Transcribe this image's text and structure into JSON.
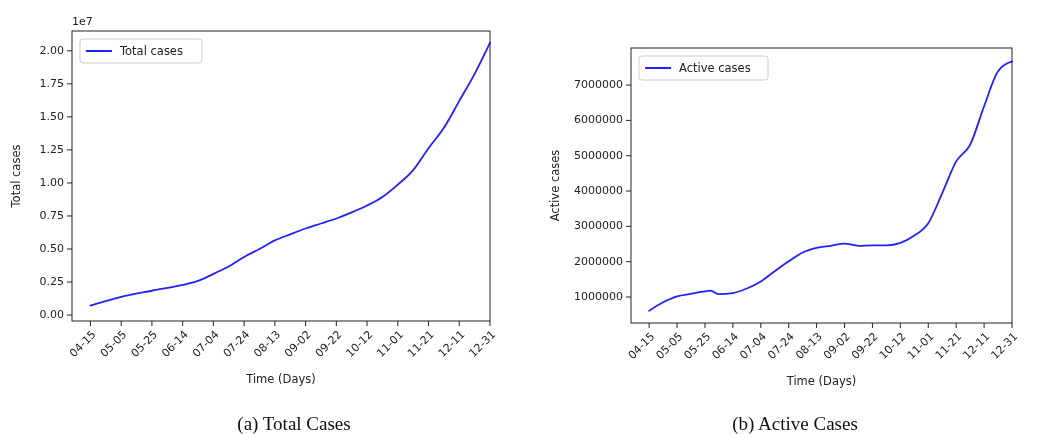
{
  "chart_data": [
    {
      "type": "line",
      "title": "(a)  Total Cases",
      "xlabel": "Time (Days)",
      "ylabel": "Total cases",
      "annotations": [
        "1e7"
      ],
      "x": [
        "--04-15",
        "--05-05",
        "--05-25",
        "--06-14",
        "--06-24",
        "--07-04",
        "--07-14",
        "--07-24",
        "--08-03",
        "--08-13",
        "--08-23",
        "--09-02",
        "--09-12",
        "--09-22",
        "--10-02",
        "--10-12",
        "--10-22",
        "--11-01",
        "--11-11",
        "--11-21",
        "--12-01",
        "--12-11",
        "--12-21",
        "--12-31"
      ],
      "series": [
        {
          "name": "Total cases",
          "color": "#2222ff",
          "values": [
            0.072,
            0.138,
            0.184,
            0.228,
            0.258,
            0.312,
            0.368,
            0.44,
            0.5,
            0.565,
            0.611,
            0.655,
            0.693,
            0.731,
            0.777,
            0.829,
            0.893,
            0.987,
            1.097,
            1.263,
            1.417,
            1.621,
            1.826,
            2.061
          ]
        }
      ],
      "xlim": [
        "--04-03",
        "--12-31"
      ],
      "xticks": [
        {
          "value": "--04-15",
          "label": "04-15"
        },
        {
          "value": "--05-05",
          "label": "05-05"
        },
        {
          "value": "--05-25",
          "label": "05-25"
        },
        {
          "value": "--06-14",
          "label": "06-14"
        },
        {
          "value": "--07-04",
          "label": "07-04"
        },
        {
          "value": "--07-24",
          "label": "07-24"
        },
        {
          "value": "--08-13",
          "label": "08-13"
        },
        {
          "value": "--09-02",
          "label": "09-02"
        },
        {
          "value": "--09-22",
          "label": "09-22"
        },
        {
          "value": "--10-12",
          "label": "10-12"
        },
        {
          "value": "--11-01",
          "label": "11-01"
        },
        {
          "value": "--11-21",
          "label": "11-21"
        },
        {
          "value": "--12-11",
          "label": "12-11"
        },
        {
          "value": "--12-31",
          "label": "12-31"
        }
      ],
      "ylim": [
        -0.045,
        2.15
      ],
      "yticks": [
        {
          "value": 0,
          "label": "0.00"
        },
        {
          "value": 0.25,
          "label": "0.25"
        },
        {
          "value": 0.5,
          "label": "0.50"
        },
        {
          "value": 0.75,
          "label": "0.75"
        },
        {
          "value": 1,
          "label": "1.00"
        },
        {
          "value": 1.25,
          "label": "1.25"
        },
        {
          "value": 1.5,
          "label": "1.50"
        },
        {
          "value": 1.75,
          "label": "1.75"
        },
        {
          "value": 2,
          "label": "2.00"
        }
      ],
      "legend": "top left",
      "grid": false
    },
    {
      "type": "line",
      "title": "(b)  Active Cases",
      "xlabel": "Time (Days)",
      "ylabel": "Active cases",
      "x": [
        "--04-15",
        "--04-25",
        "--05-05",
        "--05-15",
        "--05-25",
        "--05-29",
        "--06-04",
        "--06-14",
        "--06-24",
        "--07-04",
        "--07-14",
        "--07-24",
        "--08-03",
        "--08-13",
        "--08-23",
        "--09-02",
        "--09-12",
        "--09-22",
        "--10-02",
        "--10-12",
        "--10-22",
        "--11-01",
        "--11-11",
        "--11-21",
        "--12-01",
        "--12-11",
        "--12-21",
        "--12-31"
      ],
      "series": [
        {
          "name": "Active cases",
          "color": "#2222ff",
          "values": [
            610000,
            850000,
            1020000,
            1090000,
            1160000,
            1180000,
            1080000,
            1110000,
            1240000,
            1440000,
            1730000,
            2010000,
            2260000,
            2390000,
            2450000,
            2510000,
            2450000,
            2460000,
            2460000,
            2530000,
            2740000,
            3090000,
            3940000,
            4840000,
            5310000,
            6400000,
            7390000,
            7670000
          ]
        }
      ],
      "xlim": [
        "--04-02",
        "--12-31"
      ],
      "xticks": [
        {
          "value": "--04-15",
          "label": "04-15"
        },
        {
          "value": "--05-05",
          "label": "05-05"
        },
        {
          "value": "--05-25",
          "label": "05-25"
        },
        {
          "value": "--06-14",
          "label": "06-14"
        },
        {
          "value": "--07-04",
          "label": "07-04"
        },
        {
          "value": "--07-24",
          "label": "07-24"
        },
        {
          "value": "--08-13",
          "label": "08-13"
        },
        {
          "value": "--09-02",
          "label": "09-02"
        },
        {
          "value": "--09-22",
          "label": "09-22"
        },
        {
          "value": "--10-12",
          "label": "10-12"
        },
        {
          "value": "--11-01",
          "label": "11-01"
        },
        {
          "value": "--11-21",
          "label": "11-21"
        },
        {
          "value": "--12-11",
          "label": "12-11"
        },
        {
          "value": "--12-31",
          "label": "12-31"
        }
      ],
      "ylim": [
        264000,
        8050000
      ],
      "yticks": [
        1000000,
        2000000,
        3000000,
        4000000,
        5000000,
        6000000,
        7000000
      ],
      "legend": "top left",
      "grid": false
    }
  ]
}
